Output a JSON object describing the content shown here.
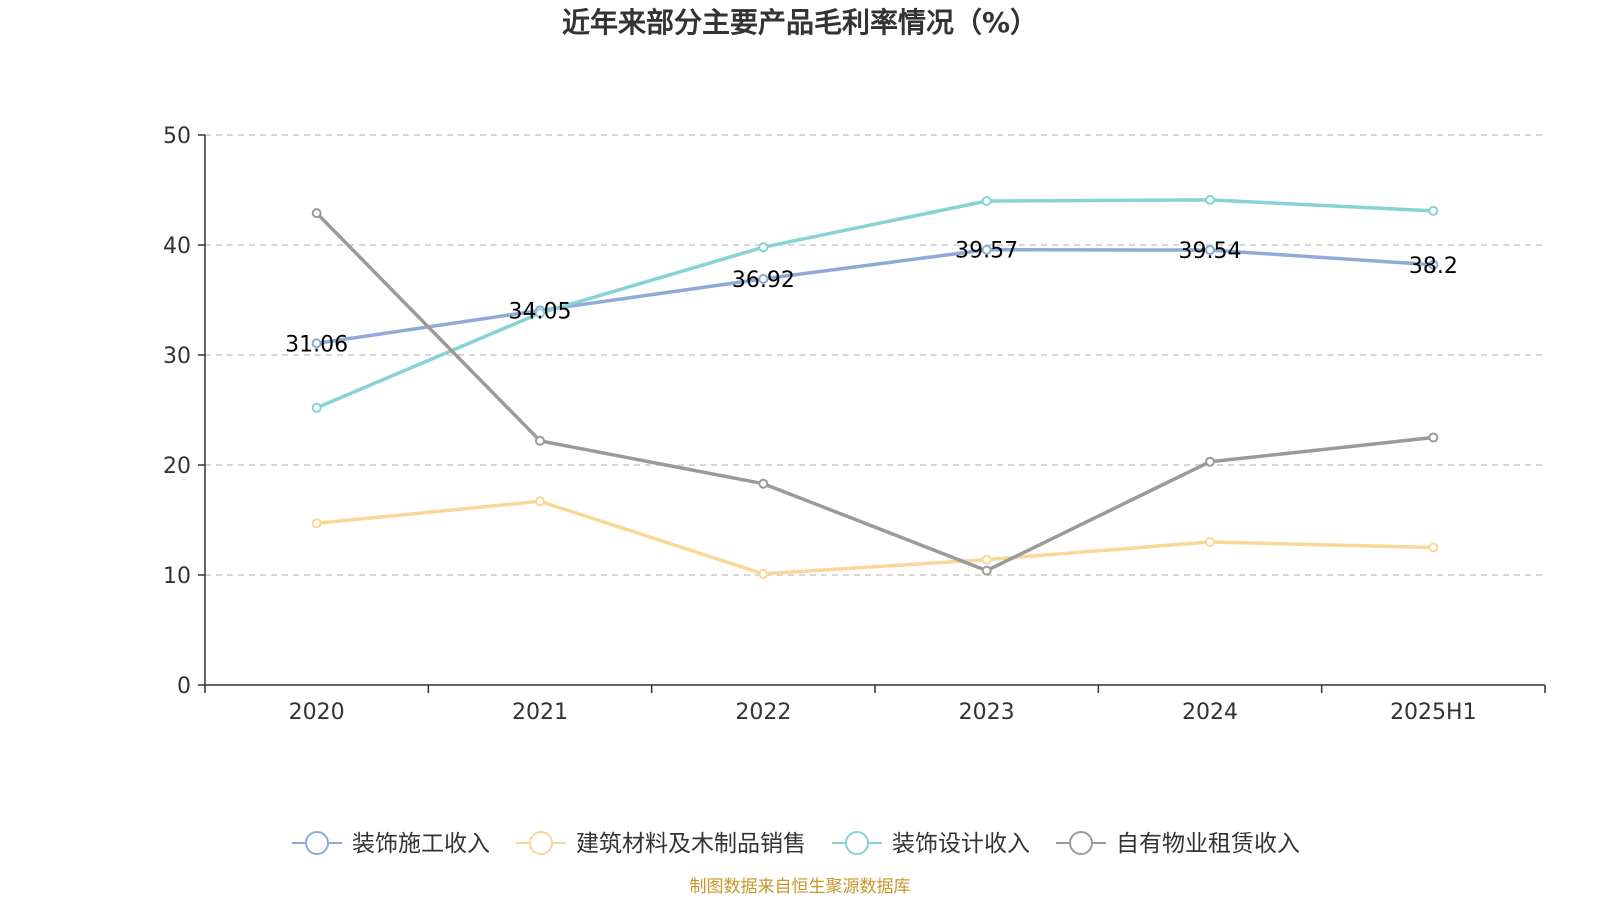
{
  "chart_data": {
    "type": "line",
    "title": "近年来部分主要产品毛利率情况（%）",
    "xlabel": "",
    "ylabel": "",
    "categories": [
      "2020",
      "2021",
      "2022",
      "2023",
      "2024",
      "2025H1"
    ],
    "ylim": [
      0,
      50
    ],
    "yticks": [
      0,
      10,
      20,
      30,
      40,
      50
    ],
    "grid": true,
    "legend_position": "bottom",
    "series": [
      {
        "name": "装饰施工收入",
        "color": "#8eaad6",
        "values": [
          31.06,
          34.05,
          36.92,
          39.57,
          39.54,
          38.2
        ],
        "labels": [
          "31.06",
          "34.05",
          "36.92",
          "39.57",
          "39.54",
          "38.2"
        ]
      },
      {
        "name": "建筑材料及木制品销售",
        "color": "#f9d897",
        "values": [
          14.7,
          16.7,
          10.1,
          11.4,
          13.0,
          12.5
        ]
      },
      {
        "name": "装饰设计收入",
        "color": "#86d2d4",
        "values": [
          25.2,
          33.8,
          39.8,
          44.0,
          44.1,
          43.1
        ]
      },
      {
        "name": "自有物业租赁收入",
        "color": "#9a9a9a",
        "values": [
          42.9,
          22.2,
          18.3,
          10.4,
          20.3,
          22.5
        ]
      }
    ]
  },
  "source_note": "制图数据来自恒生聚源数据库"
}
